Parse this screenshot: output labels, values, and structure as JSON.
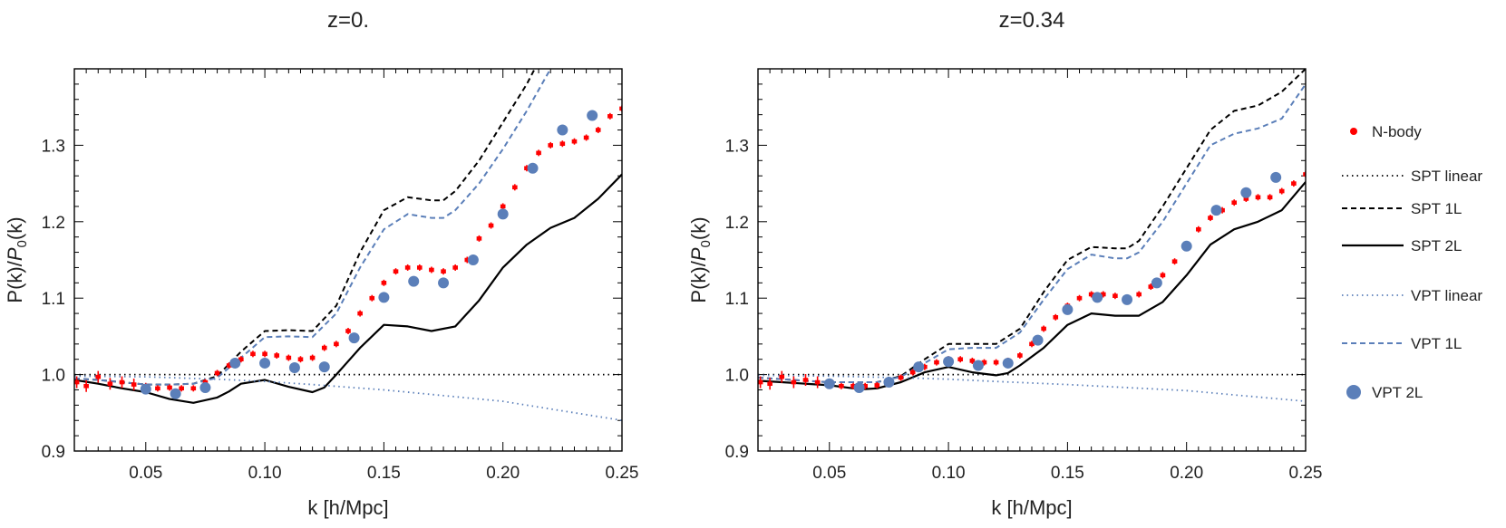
{
  "legend": [
    {
      "key": "nbody",
      "label": "N-body",
      "color": "#ff0000",
      "style": "errorbar"
    },
    {
      "key": "spt_linear",
      "label": "SPT linear",
      "color": "#000000",
      "style": "dotted"
    },
    {
      "key": "spt_1l",
      "label": "SPT 1L",
      "color": "#000000",
      "style": "dashed"
    },
    {
      "key": "spt_2l",
      "label": "SPT 2L",
      "color": "#000000",
      "style": "solid"
    },
    {
      "key": "vpt_linear",
      "label": "VPT linear",
      "color": "#5b7fb9",
      "style": "dotted"
    },
    {
      "key": "vpt_1l",
      "label": "VPT 1L",
      "color": "#5b7fb9",
      "style": "dashed"
    },
    {
      "key": "vpt_2l",
      "label": "VPT 2L",
      "color": "#5b7fb9",
      "style": "markers"
    }
  ],
  "chart_data": [
    {
      "type": "line",
      "title": "z=0.",
      "xlabel": "k [h/Mpc]",
      "ylabel": "P(k)/P_0(k)",
      "xlim": [
        0.02,
        0.25
      ],
      "ylim": [
        0.9,
        1.4
      ],
      "xticks": [
        "0.05",
        "0.10",
        "0.15",
        "0.20",
        "0.25"
      ],
      "yticks": [
        "0.9",
        "1.0",
        "1.1",
        "1.2",
        "1.3"
      ],
      "series": [
        {
          "name": "SPT linear",
          "x": [
            0.02,
            0.25
          ],
          "y": [
            1.0,
            1.0
          ]
        },
        {
          "name": "SPT 1L",
          "x": [
            0.02,
            0.03,
            0.04,
            0.05,
            0.06,
            0.07,
            0.08,
            0.09,
            0.1,
            0.11,
            0.12,
            0.13,
            0.14,
            0.15,
            0.16,
            0.17,
            0.175,
            0.18,
            0.19,
            0.2,
            0.21,
            0.215
          ],
          "y": [
            0.995,
            0.993,
            0.99,
            0.987,
            0.987,
            0.988,
            0.998,
            1.03,
            1.057,
            1.058,
            1.057,
            1.09,
            1.16,
            1.215,
            1.232,
            1.228,
            1.228,
            1.24,
            1.28,
            1.33,
            1.38,
            1.41
          ]
        },
        {
          "name": "SPT 2L",
          "x": [
            0.02,
            0.03,
            0.04,
            0.05,
            0.06,
            0.07,
            0.08,
            0.085,
            0.09,
            0.1,
            0.11,
            0.12,
            0.125,
            0.13,
            0.14,
            0.15,
            0.16,
            0.17,
            0.18,
            0.19,
            0.2,
            0.21,
            0.22,
            0.23,
            0.24,
            0.25
          ],
          "y": [
            0.993,
            0.988,
            0.982,
            0.977,
            0.968,
            0.963,
            0.97,
            0.978,
            0.988,
            0.993,
            0.984,
            0.977,
            0.983,
            1.0,
            1.035,
            1.065,
            1.063,
            1.057,
            1.063,
            1.097,
            1.14,
            1.17,
            1.192,
            1.205,
            1.23,
            1.262
          ]
        },
        {
          "name": "VPT linear",
          "x": [
            0.02,
            0.05,
            0.08,
            0.1,
            0.12,
            0.15,
            0.2,
            0.25
          ],
          "y": [
            0.998,
            0.997,
            0.994,
            0.991,
            0.987,
            0.98,
            0.965,
            0.94
          ]
        },
        {
          "name": "VPT 1L",
          "x": [
            0.02,
            0.03,
            0.04,
            0.05,
            0.06,
            0.07,
            0.08,
            0.09,
            0.1,
            0.11,
            0.12,
            0.13,
            0.14,
            0.15,
            0.16,
            0.17,
            0.175,
            0.18,
            0.19,
            0.2,
            0.21,
            0.22
          ],
          "y": [
            0.995,
            0.993,
            0.99,
            0.987,
            0.987,
            0.988,
            0.996,
            1.022,
            1.049,
            1.05,
            1.049,
            1.08,
            1.14,
            1.19,
            1.21,
            1.205,
            1.205,
            1.215,
            1.25,
            1.295,
            1.345,
            1.4
          ]
        },
        {
          "name": "N-body",
          "x": [
            0.021,
            0.025,
            0.03,
            0.035,
            0.04,
            0.045,
            0.05,
            0.055,
            0.06,
            0.065,
            0.07,
            0.075,
            0.08,
            0.085,
            0.09,
            0.095,
            0.1,
            0.105,
            0.11,
            0.115,
            0.12,
            0.125,
            0.13,
            0.135,
            0.14,
            0.145,
            0.15,
            0.155,
            0.16,
            0.165,
            0.17,
            0.175,
            0.18,
            0.185,
            0.19,
            0.195,
            0.2,
            0.205,
            0.21,
            0.215,
            0.22,
            0.225,
            0.23,
            0.235,
            0.24,
            0.245,
            0.25
          ],
          "y": [
            0.99,
            0.985,
            0.997,
            0.988,
            0.99,
            0.987,
            0.985,
            0.982,
            0.983,
            0.982,
            0.982,
            0.99,
            1.002,
            1.012,
            1.02,
            1.027,
            1.027,
            1.025,
            1.022,
            1.02,
            1.022,
            1.035,
            1.04,
            1.057,
            1.08,
            1.1,
            1.12,
            1.135,
            1.14,
            1.14,
            1.137,
            1.135,
            1.14,
            1.15,
            1.178,
            1.195,
            1.22,
            1.245,
            1.27,
            1.29,
            1.3,
            1.302,
            1.305,
            1.31,
            1.32,
            1.338,
            1.348
          ]
        },
        {
          "name": "VPT 2L",
          "x": [
            0.05,
            0.0625,
            0.075,
            0.0875,
            0.1,
            0.1125,
            0.125,
            0.1375,
            0.15,
            0.1625,
            0.175,
            0.1875,
            0.2,
            0.2125,
            0.225,
            0.2375
          ],
          "y": [
            0.981,
            0.975,
            0.983,
            1.015,
            1.015,
            1.009,
            1.01,
            1.048,
            1.101,
            1.122,
            1.12,
            1.15,
            1.21,
            1.27,
            1.32,
            1.339
          ]
        }
      ]
    },
    {
      "type": "line",
      "title": "z=0.34",
      "xlabel": "k [h/Mpc]",
      "ylabel": "P(k)/P_0(k)",
      "xlim": [
        0.02,
        0.25
      ],
      "ylim": [
        0.9,
        1.4
      ],
      "xticks": [
        "0.05",
        "0.10",
        "0.15",
        "0.20",
        "0.25"
      ],
      "yticks": [
        "0.9",
        "1.0",
        "1.1",
        "1.2",
        "1.3"
      ],
      "series": [
        {
          "name": "SPT linear",
          "x": [
            0.02,
            0.25
          ],
          "y": [
            1.0,
            1.0
          ]
        },
        {
          "name": "SPT 1L",
          "x": [
            0.02,
            0.03,
            0.04,
            0.05,
            0.06,
            0.07,
            0.08,
            0.09,
            0.1,
            0.11,
            0.12,
            0.13,
            0.14,
            0.15,
            0.16,
            0.17,
            0.175,
            0.18,
            0.19,
            0.2,
            0.21,
            0.22,
            0.23,
            0.24,
            0.25
          ],
          "y": [
            0.996,
            0.994,
            0.992,
            0.99,
            0.99,
            0.99,
            0.998,
            1.02,
            1.04,
            1.04,
            1.04,
            1.06,
            1.108,
            1.15,
            1.167,
            1.165,
            1.165,
            1.175,
            1.22,
            1.27,
            1.32,
            1.345,
            1.352,
            1.37,
            1.4
          ]
        },
        {
          "name": "SPT 2L",
          "x": [
            0.02,
            0.03,
            0.04,
            0.05,
            0.06,
            0.065,
            0.07,
            0.08,
            0.09,
            0.1,
            0.11,
            0.12,
            0.125,
            0.13,
            0.14,
            0.15,
            0.16,
            0.17,
            0.18,
            0.19,
            0.2,
            0.21,
            0.22,
            0.23,
            0.24,
            0.25
          ],
          "y": [
            0.992,
            0.99,
            0.988,
            0.986,
            0.982,
            0.981,
            0.982,
            0.99,
            1.003,
            1.01,
            1.003,
            0.999,
            1.002,
            1.012,
            1.035,
            1.065,
            1.08,
            1.077,
            1.077,
            1.095,
            1.13,
            1.17,
            1.19,
            1.2,
            1.215,
            1.252
          ]
        },
        {
          "name": "VPT linear",
          "x": [
            0.02,
            0.05,
            0.08,
            0.1,
            0.12,
            0.15,
            0.2,
            0.25
          ],
          "y": [
            0.999,
            0.998,
            0.996,
            0.994,
            0.991,
            0.987,
            0.979,
            0.965
          ]
        },
        {
          "name": "VPT 1L",
          "x": [
            0.02,
            0.03,
            0.04,
            0.05,
            0.06,
            0.07,
            0.08,
            0.09,
            0.1,
            0.11,
            0.12,
            0.13,
            0.14,
            0.15,
            0.16,
            0.17,
            0.175,
            0.18,
            0.19,
            0.2,
            0.21,
            0.22,
            0.23,
            0.24,
            0.25
          ],
          "y": [
            0.996,
            0.994,
            0.992,
            0.99,
            0.99,
            0.99,
            0.997,
            1.015,
            1.033,
            1.035,
            1.035,
            1.055,
            1.098,
            1.138,
            1.157,
            1.152,
            1.152,
            1.16,
            1.2,
            1.25,
            1.3,
            1.315,
            1.322,
            1.335,
            1.38
          ]
        },
        {
          "name": "N-body",
          "x": [
            0.021,
            0.025,
            0.03,
            0.035,
            0.04,
            0.045,
            0.05,
            0.055,
            0.06,
            0.065,
            0.07,
            0.075,
            0.08,
            0.085,
            0.09,
            0.095,
            0.1,
            0.105,
            0.11,
            0.115,
            0.12,
            0.125,
            0.13,
            0.135,
            0.14,
            0.145,
            0.15,
            0.155,
            0.16,
            0.165,
            0.17,
            0.175,
            0.18,
            0.185,
            0.19,
            0.195,
            0.2,
            0.205,
            0.21,
            0.215,
            0.22,
            0.225,
            0.23,
            0.235,
            0.24,
            0.245,
            0.25
          ],
          "y": [
            0.99,
            0.988,
            0.997,
            0.99,
            0.993,
            0.99,
            0.988,
            0.985,
            0.985,
            0.985,
            0.986,
            0.99,
            0.996,
            1.003,
            1.01,
            1.016,
            1.02,
            1.02,
            1.018,
            1.016,
            1.016,
            1.018,
            1.025,
            1.04,
            1.06,
            1.075,
            1.09,
            1.1,
            1.105,
            1.105,
            1.103,
            1.1,
            1.105,
            1.115,
            1.13,
            1.148,
            1.168,
            1.19,
            1.205,
            1.215,
            1.225,
            1.23,
            1.232,
            1.232,
            1.24,
            1.25,
            1.262
          ]
        },
        {
          "name": "VPT 2L",
          "x": [
            0.05,
            0.0625,
            0.075,
            0.0875,
            0.1,
            0.1125,
            0.125,
            0.1375,
            0.15,
            0.1625,
            0.175,
            0.1875,
            0.2,
            0.2125,
            0.225,
            0.2375
          ],
          "y": [
            0.988,
            0.983,
            0.99,
            1.01,
            1.017,
            1.012,
            1.015,
            1.045,
            1.085,
            1.101,
            1.098,
            1.12,
            1.168,
            1.215,
            1.238,
            1.258
          ]
        }
      ]
    }
  ]
}
